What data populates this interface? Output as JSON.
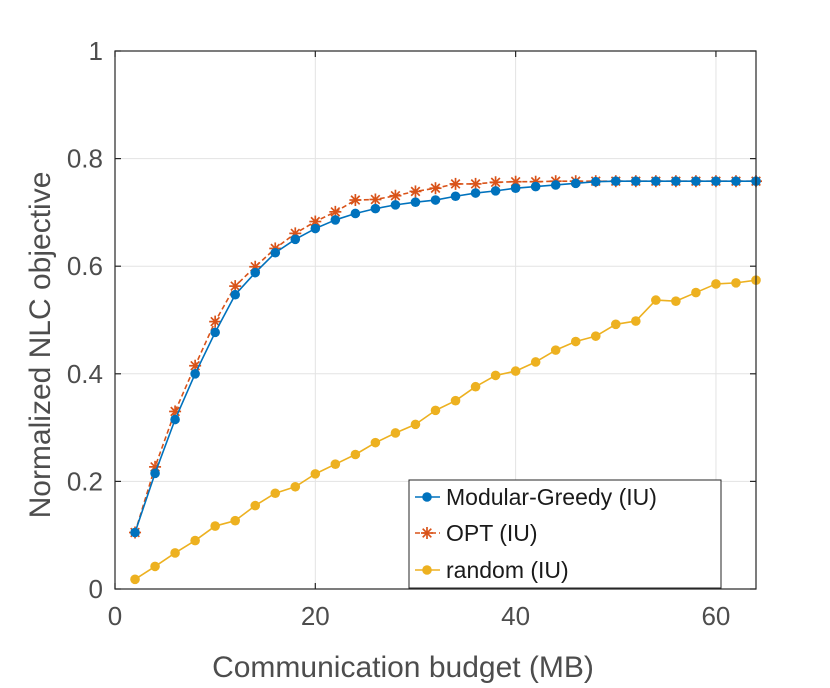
{
  "chart_data": {
    "type": "line",
    "title": "",
    "xlabel": "Communication budget (MB)",
    "ylabel": "Normalized NLC objective",
    "xlim": [
      0,
      64
    ],
    "ylim": [
      0,
      1
    ],
    "xticks": [
      0,
      20,
      40,
      60
    ],
    "yticks": [
      0,
      0.2,
      0.4,
      0.6,
      0.8,
      1
    ],
    "xtick_labels": [
      "0",
      "20",
      "40",
      "60"
    ],
    "ytick_labels": [
      "0",
      "0.2",
      "0.4",
      "0.6",
      "0.8",
      "1"
    ],
    "grid": true,
    "legend_position": "bottom-right",
    "x": [
      2,
      4,
      6,
      8,
      10,
      12,
      14,
      16,
      18,
      20,
      22,
      24,
      26,
      28,
      30,
      32,
      34,
      36,
      38,
      40,
      42,
      44,
      46,
      48,
      50,
      52,
      54,
      56,
      58,
      60,
      62,
      64
    ],
    "series": [
      {
        "name": "Modular-Greedy (IU)",
        "color": "#0072bd",
        "marker": "circle",
        "line_style": "solid",
        "values": [
          0.105,
          0.215,
          0.315,
          0.4,
          0.477,
          0.547,
          0.588,
          0.625,
          0.65,
          0.67,
          0.686,
          0.698,
          0.707,
          0.714,
          0.719,
          0.723,
          0.73,
          0.736,
          0.74,
          0.745,
          0.748,
          0.751,
          0.754,
          0.757,
          0.758,
          0.758,
          0.758,
          0.758,
          0.758,
          0.758,
          0.758,
          0.758
        ]
      },
      {
        "name": "OPT (IU)",
        "color": "#d95319",
        "marker": "asterisk",
        "line_style": "dashed",
        "values": [
          0.105,
          0.227,
          0.33,
          0.415,
          0.497,
          0.563,
          0.599,
          0.633,
          0.661,
          0.683,
          0.701,
          0.723,
          0.724,
          0.731,
          0.739,
          0.745,
          0.753,
          0.753,
          0.756,
          0.757,
          0.757,
          0.758,
          0.758,
          0.758,
          0.758,
          0.758,
          0.758,
          0.758,
          0.758,
          0.758,
          0.758,
          0.758
        ]
      },
      {
        "name": "random (IU)",
        "color": "#edb120",
        "marker": "circle",
        "line_style": "solid",
        "values": [
          0.018,
          0.042,
          0.067,
          0.09,
          0.117,
          0.127,
          0.155,
          0.178,
          0.19,
          0.214,
          0.232,
          0.25,
          0.272,
          0.29,
          0.306,
          0.332,
          0.35,
          0.376,
          0.397,
          0.405,
          0.422,
          0.444,
          0.46,
          0.47,
          0.492,
          0.498,
          0.537,
          0.535,
          0.551,
          0.567,
          0.569,
          0.574
        ]
      }
    ]
  }
}
